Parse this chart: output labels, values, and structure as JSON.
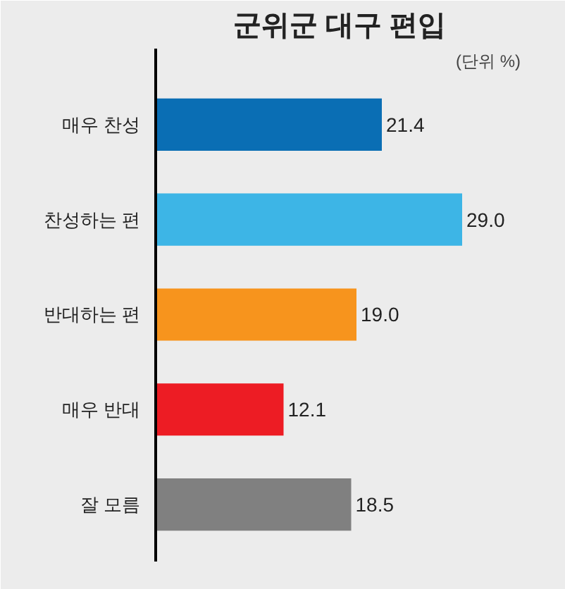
{
  "chart_data": {
    "type": "bar",
    "orientation": "horizontal",
    "title": "군위군 대구 편입",
    "annotations": [
      "(단위 %)"
    ],
    "categories": [
      "매우 찬성",
      "찬성하는 편",
      "반대하는 편",
      "매우 반대",
      "잘 모름"
    ],
    "values": [
      21.4,
      29.0,
      19.0,
      12.1,
      18.5
    ],
    "colors": [
      "#0a6eb4",
      "#3db5e6",
      "#f7941d",
      "#ed1c24",
      "#808080"
    ],
    "value_labels": [
      "21.4",
      "29.0",
      "19.0",
      "12.1",
      "18.5"
    ],
    "grid": false
  }
}
